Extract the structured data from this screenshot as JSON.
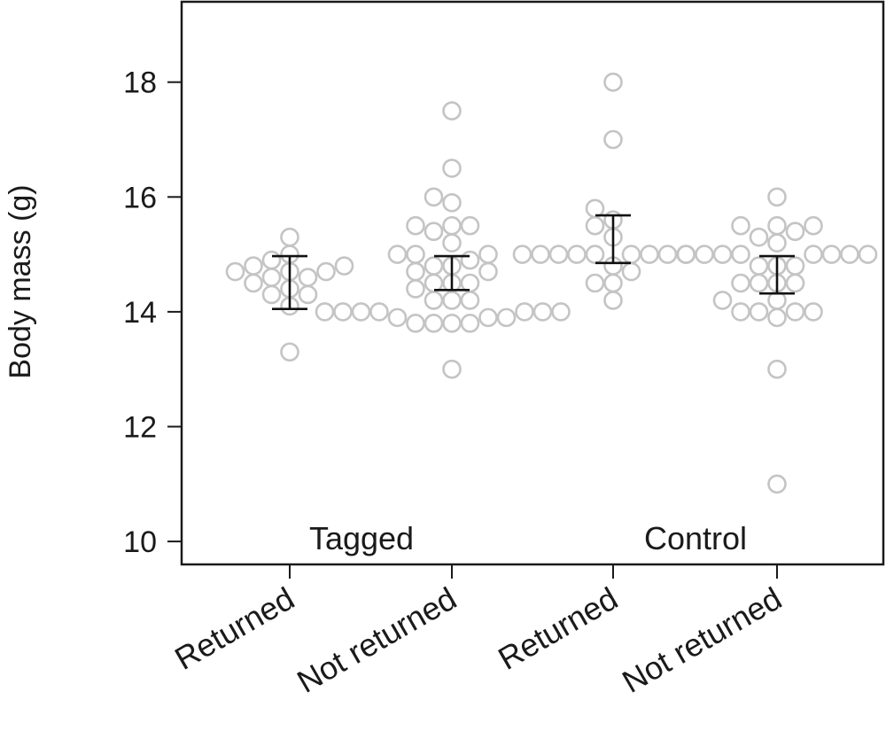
{
  "chart_data": {
    "type": "scatter",
    "ylabel": "Body mass (g)",
    "ylim": [
      9.6,
      19.4
    ],
    "yticks": [
      10,
      12,
      14,
      16,
      18
    ],
    "categories": [
      "Returned",
      "Not returned",
      "Returned",
      "Not returned"
    ],
    "group_labels": [
      "Tagged",
      "Control"
    ],
    "grid": false,
    "series": [
      {
        "group": "Tagged",
        "values": [
          15.3,
          15.0,
          14.9,
          14.8,
          14.8,
          14.7,
          14.7,
          14.7,
          14.6,
          14.6,
          14.5,
          14.4,
          14.3,
          14.3,
          14.1,
          13.3
        ],
        "error_bar": {
          "lower": 14.05,
          "upper": 14.97
        }
      },
      {
        "group": "Tagged",
        "values": [
          17.5,
          16.5,
          16.0,
          15.9,
          15.5,
          15.5,
          15.5,
          15.4,
          15.2,
          15.0,
          15.0,
          15.0,
          14.9,
          14.8,
          14.8,
          14.7,
          14.7,
          14.5,
          14.5,
          14.5,
          14.4,
          14.2,
          14.2,
          14.2,
          14.0,
          14.0,
          14.0,
          14.0,
          14.0,
          14.0,
          14.0,
          13.9,
          13.9,
          13.9,
          13.8,
          13.8,
          13.8,
          13.8,
          13.0
        ],
        "error_bar": {
          "lower": 14.38,
          "upper": 14.97
        }
      },
      {
        "group": "Control",
        "values": [
          18.0,
          17.0,
          15.8,
          15.6,
          15.5,
          15.3,
          15.0,
          15.0,
          15.0,
          15.0,
          15.0,
          15.0,
          15.0,
          15.0,
          15.0,
          14.8,
          14.7,
          14.5,
          14.5,
          14.2
        ],
        "error_bar": {
          "lower": 14.85,
          "upper": 15.68
        }
      },
      {
        "group": "Control",
        "values": [
          16.0,
          15.5,
          15.5,
          15.5,
          15.4,
          15.3,
          15.2,
          15.0,
          15.0,
          15.0,
          15.0,
          15.0,
          15.0,
          15.0,
          15.0,
          14.8,
          14.8,
          14.8,
          14.5,
          14.5,
          14.5,
          14.5,
          14.2,
          14.2,
          14.0,
          14.0,
          14.0,
          14.0,
          13.9,
          13.0,
          11.0
        ],
        "error_bar": {
          "lower": 14.32,
          "upper": 14.97
        }
      }
    ]
  }
}
